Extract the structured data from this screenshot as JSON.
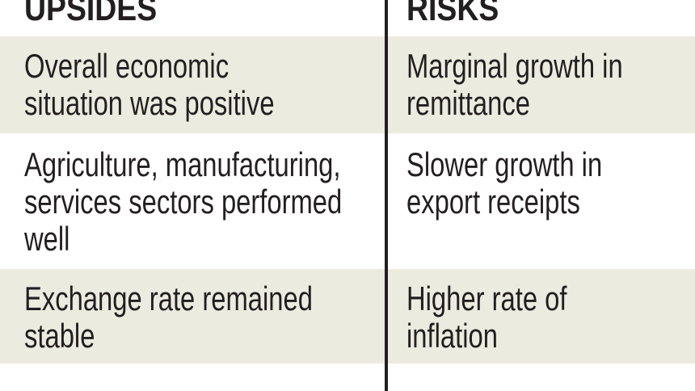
{
  "table": {
    "headers": [
      "UPSIDES",
      "RISKS"
    ],
    "rows": [
      [
        [
          "Overall economic",
          "situation was positive"
        ],
        [
          "Marginal growth in",
          "remittance"
        ]
      ],
      [
        [
          "Agriculture, manufacturing,",
          "services sectors performed",
          "well"
        ],
        [
          "Slower growth in",
          "export receipts"
        ]
      ],
      [
        [
          "Exchange rate remained",
          "stable"
        ],
        [
          "Higher rate of",
          "inflation"
        ]
      ]
    ]
  }
}
